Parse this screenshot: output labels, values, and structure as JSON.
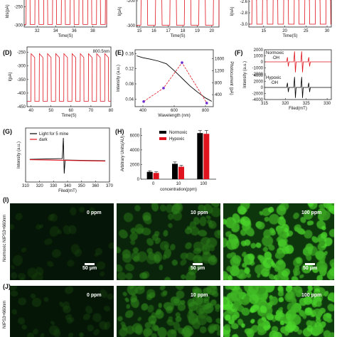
{
  "colors": {
    "red": "#e0141e",
    "black": "#000000",
    "purple": "#6a2bd0",
    "orange": "#e0501e"
  },
  "chart_data": [
    {
      "panel": "top-left",
      "type": "line",
      "ylabel": "Ids(pA)",
      "xlabel": "Time(S)",
      "yticks": [
        "-250",
        "-300"
      ],
      "xticks": [
        "32",
        "34",
        "36",
        "38"
      ],
      "xlim": [
        30.6,
        39.5
      ],
      "ylim": [
        -305,
        -220
      ],
      "series": [
        {
          "color": "#e0141e",
          "period": 0.95,
          "x0": 30.8,
          "high": -224,
          "low": -298
        }
      ]
    },
    {
      "panel": "top-middle",
      "type": "line",
      "ylabel": "I(pA)",
      "xlabel": "Time(S)",
      "yticks": [
        "-200",
        "-300"
      ],
      "xticks": [
        "15",
        "16",
        "17",
        "18",
        "19",
        "20"
      ],
      "xlim": [
        14.8,
        20.5
      ],
      "ylim": [
        -305,
        -180
      ],
      "series": [
        {
          "color": "#e0141e",
          "period": 1.0,
          "x0": 15.1,
          "high": -185,
          "low": -298
        }
      ]
    },
    {
      "panel": "top-right",
      "type": "line",
      "ylabel": "I(nA)",
      "xlabel": "Time(S)",
      "yticks": [
        "-2.6",
        "-2.8",
        "-3.0"
      ],
      "xticks": [
        "15",
        "20",
        "25",
        "30"
      ],
      "xlim": [
        11.5,
        31
      ],
      "ylim": [
        -3.05,
        -2.5
      ],
      "series": [
        {
          "color": "#e0141e",
          "period": 2.5,
          "x0": 12.2,
          "high": -2.54,
          "low": -3.0
        }
      ]
    },
    {
      "panel": "D",
      "type": "line",
      "annotation": "800.5nm",
      "ylabel": "I(pA)",
      "xlabel": "Time(S)",
      "yticks": [
        "-250",
        "-300",
        "-350",
        "-400",
        "-450"
      ],
      "xticks": [
        "40",
        "50",
        "60",
        "70",
        "80"
      ],
      "xlim": [
        38,
        80
      ],
      "ylim": [
        -450,
        -230
      ],
      "series": [
        {
          "color": "#e0141e",
          "period": 4.1,
          "x0": 40,
          "high": -255,
          "low": -430
        }
      ]
    },
    {
      "panel": "E",
      "type": "line",
      "xlabel": "Wavelength (nm)",
      "ylabel": "Intensity (a.u.)",
      "ylabel_right": "Photocurrent (pA)",
      "xticks": [
        "400",
        "600",
        "800"
      ],
      "yticks": [
        "0.04",
        "0.08",
        "0.12",
        "0.16"
      ],
      "yticks_right": [
        "400",
        "800",
        "1200",
        "1600"
      ],
      "xlim": [
        350,
        850
      ],
      "ylim": [
        0.02,
        0.17
      ],
      "ylim_right": [
        0,
        1900
      ],
      "absorbance": {
        "color": "#000000",
        "x": [
          360,
          400,
          450,
          500,
          550,
          600,
          650,
          700,
          750,
          800,
          840
        ],
        "y": [
          0.154,
          0.149,
          0.145,
          0.14,
          0.133,
          0.115,
          0.095,
          0.075,
          0.058,
          0.043,
          0.034
        ]
      },
      "photocurrent": {
        "color": "#e0141e",
        "x": [
          405,
          532,
          650,
          808
        ],
        "y": [
          170,
          620,
          1470,
          120
        ],
        "marker_colors": [
          "#6a2bd0",
          "#6a2bd0",
          "#6a2bd0",
          "#6a2bd0"
        ]
      }
    },
    {
      "panel": "F",
      "type": "line",
      "xlabel": "Filed(mT)",
      "ylabel": "Intensity (a.u.)",
      "xticks": [
        "315",
        "320",
        "325",
        "330"
      ],
      "yticks_top": [
        "2000",
        "1000",
        "0",
        "-1000",
        "-2000"
      ],
      "yticks_bottom": [
        "4000",
        "2000",
        "0",
        "-2000",
        "-4000"
      ],
      "xlim": [
        315,
        331
      ],
      "series": [
        {
          "name": "Normoxic",
          "sublabel": "·OH",
          "color": "#e0141e"
        },
        {
          "name": "Hypoxic",
          "sublabel": "·OH",
          "color": "#000000"
        }
      ]
    },
    {
      "panel": "G",
      "type": "line",
      "xlabel": "Filed(mT)",
      "ylabel": "Intensity (a.u.)",
      "xticks": [
        "310",
        "320",
        "330",
        "340",
        "350",
        "360",
        "370"
      ],
      "xlim": [
        310,
        370
      ],
      "series": [
        {
          "name": "Light for 5 mine",
          "color": "#000000"
        },
        {
          "name": "dark",
          "color": "#e0141e"
        }
      ]
    },
    {
      "panel": "H",
      "type": "bar",
      "xlabel": "concentration(ppm)",
      "ylabel": "Arbitrary Units(AU)",
      "categories": [
        "0",
        "10",
        "100"
      ],
      "yticks": [
        "0",
        "2000",
        "4000",
        "6000"
      ],
      "ylim": [
        0,
        7000
      ],
      "series": [
        {
          "name": "Normoxic",
          "color": "#000000",
          "values": [
            1000,
            2100,
            6300
          ],
          "errors": [
            150,
            250,
            350
          ]
        },
        {
          "name": "Hypoxic",
          "color": "#e0141e",
          "values": [
            850,
            1700,
            6200
          ],
          "errors": [
            150,
            200,
            450
          ]
        }
      ]
    }
  ],
  "panels": {
    "labels": {
      "D": "(D)",
      "E": "(E)",
      "F": "(F)",
      "G": "(G)",
      "H": "(H)",
      "I": "(I)",
      "J": "(J)"
    },
    "legend_F": {
      "normoxic": "Normoxic",
      "normoxic_oh": "·OH",
      "hypoxic": "Hypoxic",
      "hypoxic_oh": "·OH"
    },
    "legend_G": {
      "light": "Light for 5 mine",
      "dark": "dark"
    },
    "legend_H": {
      "normoxic": "Normoxic",
      "hypoxic": "Hypoxic"
    }
  },
  "micrographs": {
    "rowI_label": "Normoxic NIPS3+660nm",
    "rowJ_label": "NIPS3+660nm",
    "scalebar": "50 μm",
    "rowI": [
      {
        "conc": "0 ppm",
        "brightness": 0.08
      },
      {
        "conc": "10 ppm",
        "brightness": 0.45
      },
      {
        "conc": "100 ppm",
        "brightness": 0.9
      }
    ],
    "rowJ": [
      {
        "conc": "0 ppm",
        "brightness": 0.1
      },
      {
        "conc": "10 ppm",
        "brightness": 0.5
      },
      {
        "conc": "100 ppm",
        "brightness": 0.95
      }
    ]
  }
}
